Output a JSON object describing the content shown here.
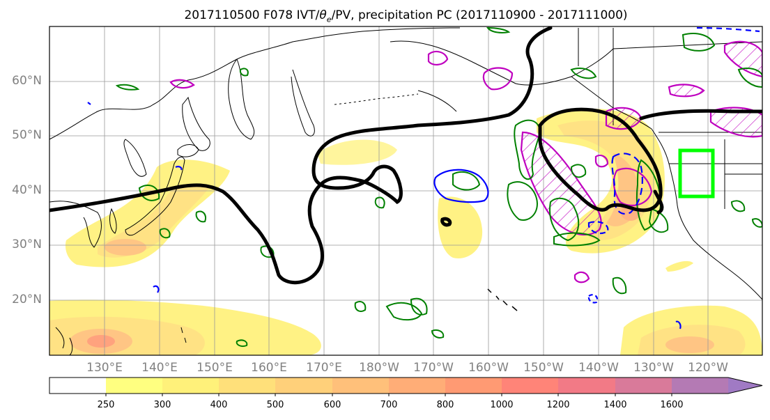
{
  "title": {
    "prefix": "2017110500 F078 IVT/",
    "theta": "θ",
    "theta_sub": "e",
    "suffix": "/PV, precipitation PC (2017110900 - 2017111000)"
  },
  "latitude_labels": [
    "60°N",
    "50°N",
    "40°N",
    "30°N",
    "20°N"
  ],
  "longitude_labels": [
    "130°E",
    "140°E",
    "150°E",
    "160°E",
    "170°E",
    "180°W",
    "170°W",
    "160°W",
    "150°W",
    "140°W",
    "130°W",
    "120°W"
  ],
  "colorbar": {
    "labels": [
      "250",
      "300",
      "400",
      "500",
      "600",
      "700",
      "800",
      "1000",
      "1200",
      "1400",
      "1600"
    ],
    "colors": [
      "#ffff80",
      "#fff17a",
      "#ffe07a",
      "#ffd07a",
      "#ffc07a",
      "#ffad77",
      "#ff9a73",
      "#ff8478",
      "#f27a86",
      "#d97a9a",
      "#b47ab4",
      "#a07ac4"
    ],
    "extend": "max"
  },
  "colors": {
    "pv_contour": "#000000",
    "theta_e_green": "#008000",
    "theta_e_blue": "#0000ff",
    "theta_e_magenta": "#bf00bf",
    "target_box": "#00ff00",
    "grid": "#999999"
  }
}
